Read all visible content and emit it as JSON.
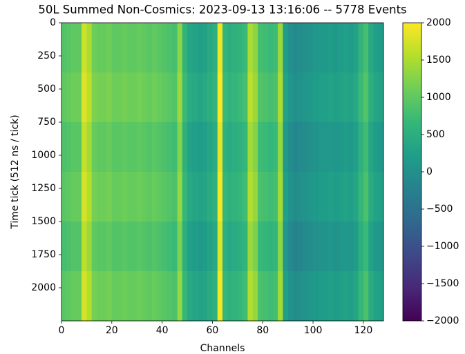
{
  "chart_data": {
    "type": "heatmap",
    "title": "50L Summed Non-Cosmics: 2023-09-13 13:16:06 -- 5778 Events",
    "xlabel": "Channels",
    "ylabel": "Time tick (512 ns / tick)",
    "colormap": "viridis",
    "x": [
      0,
      2,
      4,
      6,
      8,
      10,
      12,
      14,
      16,
      18,
      20,
      22,
      24,
      26,
      28,
      30,
      32,
      34,
      36,
      38,
      40,
      42,
      44,
      46,
      48,
      50,
      52,
      54,
      56,
      58,
      60,
      62,
      64,
      66,
      68,
      70,
      72,
      74,
      76,
      78,
      80,
      82,
      84,
      86,
      88,
      90,
      92,
      94,
      96,
      98,
      100,
      102,
      104,
      106,
      108,
      110,
      112,
      114,
      116,
      118,
      120,
      122,
      124,
      126
    ],
    "y": [
      0,
      375,
      750,
      1125,
      1500,
      1875
    ],
    "z": [
      [
        900,
        950,
        1000,
        1000,
        1700,
        1500,
        1100,
        1050,
        1050,
        1100,
        1000,
        1000,
        1050,
        1000,
        1000,
        1050,
        1000,
        950,
        1000,
        950,
        900,
        850,
        800,
        1300,
        600,
        350,
        300,
        250,
        300,
        400,
        500,
        1900,
        600,
        500,
        550,
        600,
        700,
        1500,
        1300,
        800,
        750,
        700,
        750,
        1400,
        200,
        0,
        -100,
        -50,
        0,
        50,
        100,
        150,
        150,
        200,
        150,
        200,
        250,
        200,
        300,
        600,
        800,
        400,
        250,
        200
      ],
      [
        1000,
        1050,
        1100,
        1100,
        1800,
        1600,
        1200,
        1150,
        1150,
        1200,
        1100,
        1100,
        1150,
        1100,
        1100,
        1150,
        1100,
        1050,
        1100,
        1050,
        1000,
        950,
        900,
        1400,
        700,
        450,
        400,
        350,
        400,
        500,
        600,
        2000,
        700,
        600,
        650,
        700,
        800,
        1600,
        1400,
        900,
        850,
        800,
        850,
        1500,
        300,
        100,
        0,
        50,
        100,
        150,
        200,
        250,
        250,
        300,
        250,
        300,
        350,
        300,
        400,
        700,
        900,
        500,
        350,
        300
      ],
      [
        850,
        900,
        950,
        950,
        1650,
        1450,
        1050,
        1000,
        1000,
        1050,
        950,
        950,
        1000,
        950,
        950,
        1000,
        950,
        900,
        950,
        900,
        850,
        800,
        750,
        1250,
        550,
        300,
        250,
        200,
        250,
        350,
        450,
        1850,
        550,
        450,
        500,
        550,
        650,
        1450,
        1250,
        750,
        700,
        650,
        700,
        1350,
        150,
        -50,
        -150,
        -100,
        -50,
        0,
        50,
        100,
        100,
        150,
        100,
        150,
        200,
        150,
        250,
        550,
        750,
        350,
        200,
        150
      ],
      [
        950,
        1000,
        1050,
        1050,
        1750,
        1550,
        1150,
        1100,
        1100,
        1150,
        1050,
        1050,
        1100,
        1050,
        1050,
        1100,
        1050,
        1000,
        1050,
        1000,
        950,
        900,
        850,
        1350,
        650,
        400,
        350,
        300,
        350,
        450,
        550,
        1950,
        650,
        550,
        600,
        650,
        750,
        1550,
        1350,
        850,
        800,
        750,
        800,
        1450,
        250,
        50,
        -50,
        0,
        50,
        100,
        150,
        200,
        200,
        250,
        200,
        250,
        300,
        250,
        350,
        650,
        850,
        450,
        300,
        250
      ],
      [
        800,
        850,
        900,
        900,
        1600,
        1400,
        1000,
        950,
        950,
        1000,
        900,
        900,
        950,
        900,
        900,
        950,
        900,
        850,
        900,
        850,
        800,
        750,
        700,
        1200,
        500,
        250,
        200,
        150,
        200,
        300,
        400,
        1800,
        500,
        400,
        450,
        500,
        600,
        1400,
        1200,
        700,
        650,
        600,
        650,
        1300,
        100,
        -100,
        -200,
        -150,
        -100,
        -50,
        0,
        50,
        50,
        100,
        50,
        100,
        150,
        100,
        200,
        500,
        700,
        300,
        150,
        100
      ],
      [
        950,
        1000,
        1050,
        1050,
        1750,
        1550,
        1150,
        1100,
        1100,
        1150,
        1050,
        1050,
        1100,
        1050,
        1050,
        1100,
        1050,
        1000,
        1050,
        1000,
        950,
        900,
        850,
        1350,
        650,
        400,
        350,
        300,
        350,
        450,
        550,
        1950,
        650,
        550,
        600,
        650,
        750,
        1550,
        1350,
        850,
        800,
        750,
        800,
        1450,
        250,
        50,
        -50,
        0,
        50,
        100,
        150,
        200,
        200,
        250,
        200,
        250,
        300,
        250,
        350,
        650,
        850,
        450,
        300,
        250
      ]
    ],
    "xlim": [
      0,
      128
    ],
    "xticks": [
      0,
      20,
      40,
      60,
      80,
      100,
      120
    ],
    "ylim": [
      2250,
      0
    ],
    "yticks": [
      0,
      250,
      500,
      750,
      1000,
      1250,
      1500,
      1750,
      2000
    ],
    "clim": [
      -2000,
      2000
    ],
    "cticks": [
      {
        "value": -2000,
        "label": "−2000"
      },
      {
        "value": -1500,
        "label": "−1500"
      },
      {
        "value": -1000,
        "label": "−1000"
      },
      {
        "value": -500,
        "label": "−500"
      },
      0,
      500,
      1000,
      1500,
      2000
    ]
  }
}
